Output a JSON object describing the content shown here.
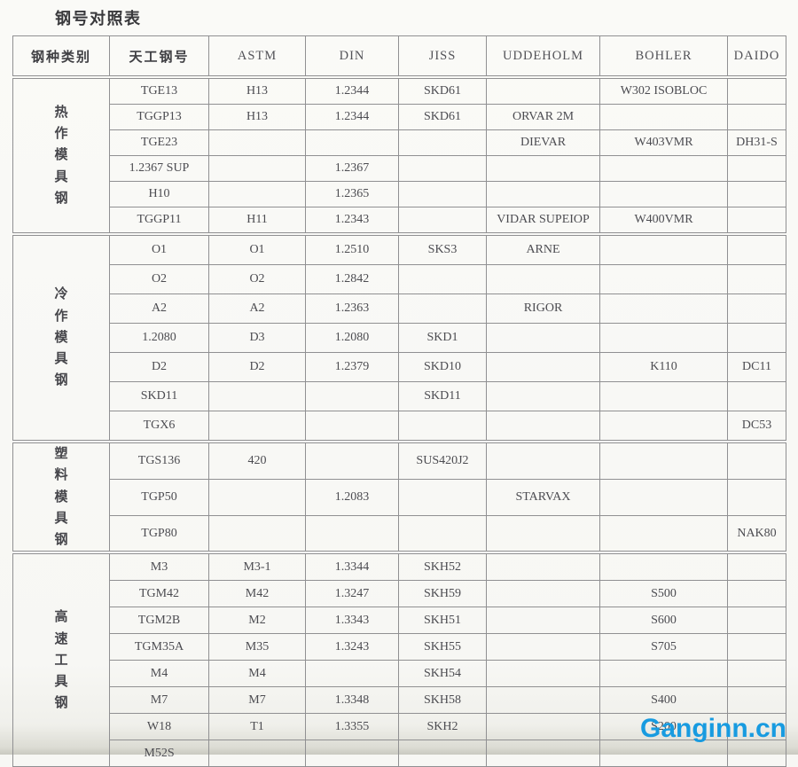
{
  "title": "钢号对照表",
  "watermark": {
    "text": "Ganginn.cn",
    "color": "#189be0"
  },
  "table": {
    "headers": [
      "钢种类别",
      "天工钢号",
      "ASTM",
      "DIN",
      "JISS",
      "UDDEHOLM",
      "BOHLER",
      "DAIDO"
    ],
    "sections": [
      {
        "category": "热作模具钢",
        "rows": [
          [
            "TGE13",
            "H13",
            "1.2344",
            "SKD61",
            "",
            "W302 ISOBLOC",
            ""
          ],
          [
            "TGGP13",
            "H13",
            "1.2344",
            "SKD61",
            "ORVAR 2M",
            "",
            ""
          ],
          [
            "TGE23",
            "",
            "",
            "",
            "DIEVAR",
            "W403VMR",
            "DH31-S"
          ],
          [
            "1.2367 SUP",
            "",
            "1.2367",
            "",
            "",
            "",
            ""
          ],
          [
            "H10",
            "",
            "1.2365",
            "",
            "",
            "",
            ""
          ],
          [
            "TGGP11",
            "H11",
            "1.2343",
            "",
            "VIDAR SUPEIOP",
            "W400VMR",
            ""
          ]
        ]
      },
      {
        "category": "冷作模具钢",
        "rows": [
          [
            "O1",
            "O1",
            "1.2510",
            "SKS3",
            "ARNE",
            "",
            ""
          ],
          [
            "O2",
            "O2",
            "1.2842",
            "",
            "",
            "",
            ""
          ],
          [
            "A2",
            "A2",
            "1.2363",
            "",
            "RIGOR",
            "",
            ""
          ],
          [
            "1.2080",
            "D3",
            "1.2080",
            "SKD1",
            "",
            "",
            ""
          ],
          [
            "D2",
            "D2",
            "1.2379",
            "SKD10",
            "",
            "K110",
            "DC11"
          ],
          [
            "SKD11",
            "",
            "",
            "SKD11",
            "",
            "",
            ""
          ],
          [
            "TGX6",
            "",
            "",
            "",
            "",
            "",
            "DC53"
          ]
        ]
      },
      {
        "category": "塑料模具钢",
        "rows": [
          [
            "TGS136",
            "420",
            "",
            "SUS420J2",
            "",
            "",
            ""
          ],
          [
            "TGP50",
            "",
            "1.2083",
            "",
            "STARVAX",
            "",
            ""
          ],
          [
            "TGP80",
            "",
            "",
            "",
            "",
            "",
            "NAK80"
          ]
        ]
      },
      {
        "category": "高速工具钢",
        "rows": [
          [
            "M3",
            "M3-1",
            "1.3344",
            "SKH52",
            "",
            "",
            ""
          ],
          [
            "TGM42",
            "M42",
            "1.3247",
            "SKH59",
            "",
            "S500",
            ""
          ],
          [
            "TGM2B",
            "M2",
            "1.3343",
            "SKH51",
            "",
            "S600",
            ""
          ],
          [
            "TGM35A",
            "M35",
            "1.3243",
            "SKH55",
            "",
            "S705",
            ""
          ],
          [
            "M4",
            "M4",
            "",
            "SKH54",
            "",
            "",
            ""
          ],
          [
            "M7",
            "M7",
            "1.3348",
            "SKH58",
            "",
            "S400",
            ""
          ],
          [
            "W18",
            "T1",
            "1.3355",
            "SKH2",
            "",
            "S200",
            ""
          ],
          [
            "M52S",
            "",
            "",
            "",
            "",
            "",
            ""
          ]
        ]
      }
    ]
  }
}
